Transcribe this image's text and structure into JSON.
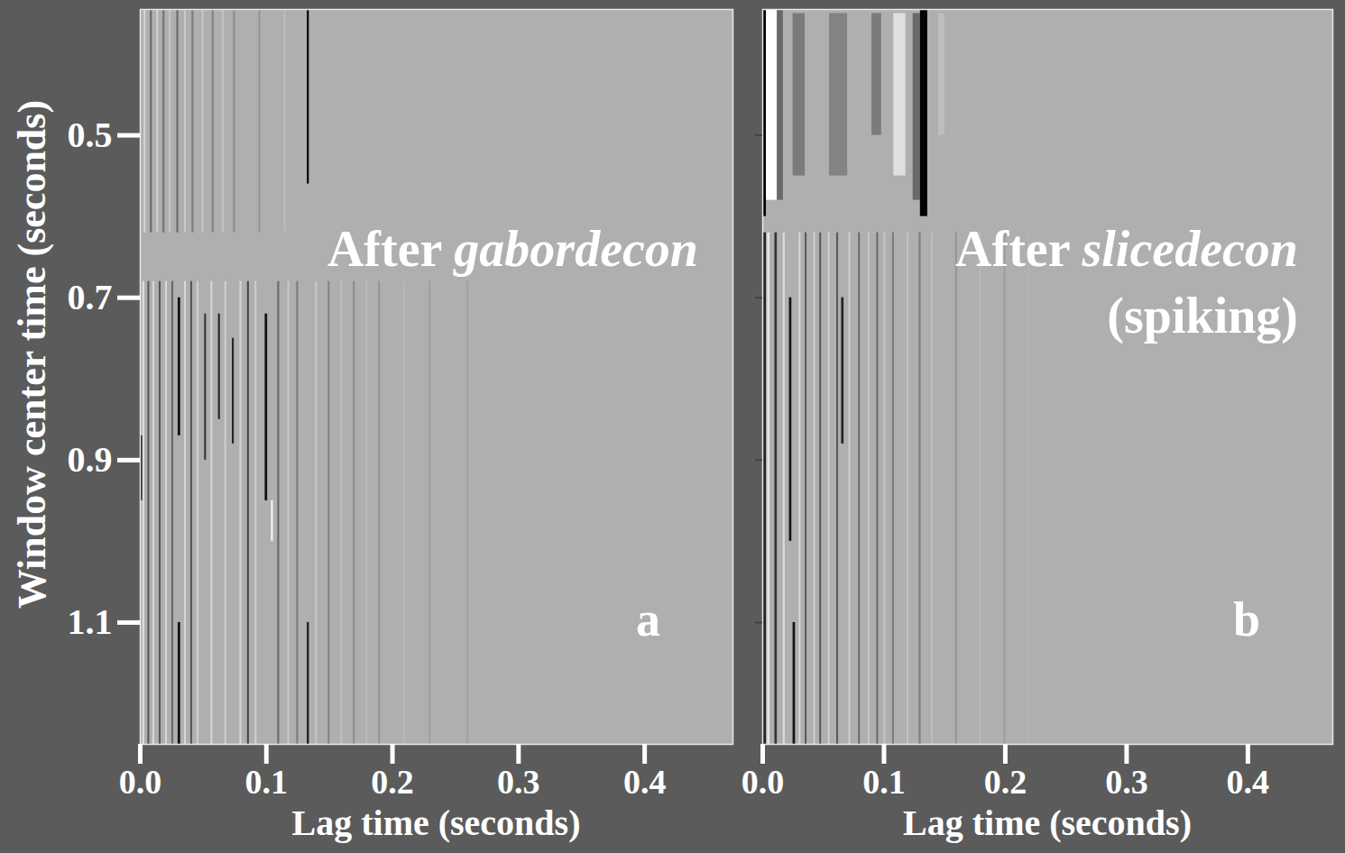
{
  "chart_data": [
    {
      "type": "heatmap",
      "title": "After gabordecon",
      "annotations": [
        "a"
      ],
      "xlabel": "Lag time (seconds)",
      "ylabel": "Window center time (seconds)",
      "xlim": [
        0,
        0.47
      ],
      "xticks": [
        {
          "value": 0,
          "label": "0.0"
        },
        0.1,
        0.2,
        0.3,
        0.4
      ],
      "ylim": [
        0.345,
        1.25
      ],
      "yticks": [
        0.5,
        0.7,
        0.9,
        1.1
      ],
      "zlim": [
        -1,
        1
      ],
      "cells": [
        {
          "x1": 0.003,
          "x2": 0.0045,
          "y1": 0.345,
          "y2": 0.62,
          "value": -0.5
        },
        {
          "x1": 0.008,
          "x2": 0.0095,
          "y1": 0.345,
          "y2": 0.62,
          "value": 0.4
        },
        {
          "x1": 0.013,
          "x2": 0.0145,
          "y1": 0.345,
          "y2": 0.62,
          "value": -0.4
        },
        {
          "x1": 0.018,
          "x2": 0.0195,
          "y1": 0.345,
          "y2": 0.62,
          "value": 0.35
        },
        {
          "x1": 0.023,
          "x2": 0.0245,
          "y1": 0.345,
          "y2": 0.62,
          "value": -0.3
        },
        {
          "x1": 0.029,
          "x2": 0.0305,
          "y1": 0.345,
          "y2": 0.62,
          "value": 0.4
        },
        {
          "x1": 0.035,
          "x2": 0.0365,
          "y1": 0.345,
          "y2": 0.62,
          "value": -0.3
        },
        {
          "x1": 0.041,
          "x2": 0.0425,
          "y1": 0.345,
          "y2": 0.62,
          "value": 0.3
        },
        {
          "x1": 0.049,
          "x2": 0.0505,
          "y1": 0.345,
          "y2": 0.62,
          "value": -0.3
        },
        {
          "x1": 0.057,
          "x2": 0.0585,
          "y1": 0.345,
          "y2": 0.62,
          "value": 0.25
        },
        {
          "x1": 0.065,
          "x2": 0.0665,
          "y1": 0.345,
          "y2": 0.62,
          "value": -0.25
        },
        {
          "x1": 0.074,
          "x2": 0.0755,
          "y1": 0.345,
          "y2": 0.62,
          "value": 0.2
        },
        {
          "x1": 0.094,
          "x2": 0.0955,
          "y1": 0.345,
          "y2": 0.62,
          "value": 0.15
        },
        {
          "x1": 0.114,
          "x2": 0.1155,
          "y1": 0.345,
          "y2": 0.62,
          "value": -0.15
        },
        {
          "x1": 0.1325,
          "x2": 0.134,
          "y1": 0.345,
          "y2": 0.56,
          "value": 1
        },
        {
          "x1": 0,
          "x2": 0.002,
          "y1": 0.87,
          "y2": 0.95,
          "value": 0.9
        },
        {
          "x1": 0.002,
          "x2": 0.0035,
          "y1": 0.68,
          "y2": 1.25,
          "value": -0.6
        },
        {
          "x1": 0.006,
          "x2": 0.0075,
          "y1": 0.68,
          "y2": 1.25,
          "value": 0.5
        },
        {
          "x1": 0.01,
          "x2": 0.0115,
          "y1": 0.68,
          "y2": 1.25,
          "value": -0.5
        },
        {
          "x1": 0.015,
          "x2": 0.0165,
          "y1": 0.68,
          "y2": 1.25,
          "value": 0.5
        },
        {
          "x1": 0.02,
          "x2": 0.0215,
          "y1": 0.68,
          "y2": 1.25,
          "value": -0.5
        },
        {
          "x1": 0.025,
          "x2": 0.0265,
          "y1": 0.68,
          "y2": 1.25,
          "value": 0.4
        },
        {
          "x1": 0.03,
          "x2": 0.032,
          "y1": 0.7,
          "y2": 0.87,
          "value": 0.9
        },
        {
          "x1": 0.03,
          "x2": 0.032,
          "y1": 1.1,
          "y2": 1.25,
          "value": 0.9
        },
        {
          "x1": 0.035,
          "x2": 0.0365,
          "y1": 0.68,
          "y2": 1.25,
          "value": -0.5
        },
        {
          "x1": 0.04,
          "x2": 0.0415,
          "y1": 0.68,
          "y2": 1.25,
          "value": 0.5
        },
        {
          "x1": 0.045,
          "x2": 0.0465,
          "y1": 0.68,
          "y2": 1.25,
          "value": -0.4
        },
        {
          "x1": 0.051,
          "x2": 0.0525,
          "y1": 0.72,
          "y2": 0.9,
          "value": 0.7
        },
        {
          "x1": 0.056,
          "x2": 0.0575,
          "y1": 0.68,
          "y2": 1.25,
          "value": -0.5
        },
        {
          "x1": 0.062,
          "x2": 0.0635,
          "y1": 0.72,
          "y2": 0.85,
          "value": 0.8
        },
        {
          "x1": 0.067,
          "x2": 0.0685,
          "y1": 0.68,
          "y2": 1.25,
          "value": -0.4
        },
        {
          "x1": 0.073,
          "x2": 0.0745,
          "y1": 0.75,
          "y2": 0.88,
          "value": 0.8
        },
        {
          "x1": 0.079,
          "x2": 0.0805,
          "y1": 0.68,
          "y2": 1.25,
          "value": -0.5
        },
        {
          "x1": 0.085,
          "x2": 0.0865,
          "y1": 0.68,
          "y2": 1.25,
          "value": 0.6
        },
        {
          "x1": 0.091,
          "x2": 0.0925,
          "y1": 0.68,
          "y2": 1.25,
          "value": -0.4
        },
        {
          "x1": 0.099,
          "x2": 0.101,
          "y1": 0.72,
          "y2": 0.95,
          "value": 0.9
        },
        {
          "x1": 0.104,
          "x2": 0.1055,
          "y1": 0.95,
          "y2": 1.0,
          "value": -0.9
        },
        {
          "x1": 0.109,
          "x2": 0.1105,
          "y1": 0.68,
          "y2": 1.25,
          "value": 0.4
        },
        {
          "x1": 0.117,
          "x2": 0.1185,
          "y1": 0.68,
          "y2": 1.25,
          "value": -0.3
        },
        {
          "x1": 0.124,
          "x2": 0.1255,
          "y1": 0.68,
          "y2": 1.25,
          "value": 0.3
        },
        {
          "x1": 0.1325,
          "x2": 0.134,
          "y1": 1.1,
          "y2": 1.25,
          "value": 0.9
        },
        {
          "x1": 0.139,
          "x2": 0.1405,
          "y1": 0.68,
          "y2": 1.25,
          "value": -0.3
        },
        {
          "x1": 0.149,
          "x2": 0.1505,
          "y1": 0.68,
          "y2": 1.25,
          "value": 0.25
        },
        {
          "x1": 0.159,
          "x2": 0.1605,
          "y1": 0.68,
          "y2": 1.25,
          "value": -0.2
        },
        {
          "x1": 0.169,
          "x2": 0.1705,
          "y1": 0.68,
          "y2": 1.25,
          "value": 0.2
        },
        {
          "x1": 0.179,
          "x2": 0.1805,
          "y1": 0.68,
          "y2": 1.25,
          "value": -0.15
        },
        {
          "x1": 0.189,
          "x2": 0.1905,
          "y1": 0.68,
          "y2": 1.25,
          "value": 0.15
        },
        {
          "x1": 0.209,
          "x2": 0.2105,
          "y1": 0.68,
          "y2": 1.25,
          "value": -0.1
        },
        {
          "x1": 0.229,
          "x2": 0.2305,
          "y1": 0.68,
          "y2": 1.25,
          "value": 0.1
        },
        {
          "x1": 0.259,
          "x2": 0.2605,
          "y1": 0.68,
          "y2": 1.25,
          "value": 0.08
        }
      ]
    },
    {
      "type": "heatmap",
      "title": "After slicedecon (spiking)",
      "annotations": [
        "b"
      ],
      "xlabel": "Lag time (seconds)",
      "tick_labels": "x",
      "xlim": [
        0,
        0.47
      ],
      "xticks": [
        {
          "value": 0,
          "label": "0.0"
        },
        0.1,
        0.2,
        0.3,
        0.4
      ],
      "ylim": [
        0.345,
        1.25
      ],
      "yticks": [
        0.5,
        0.7,
        0.9,
        1.1
      ],
      "zlim": [
        -1,
        1
      ],
      "cells": [
        {
          "x1": 0,
          "x2": 0.003,
          "y1": 0.345,
          "y2": 0.6,
          "value": 1
        },
        {
          "x1": 0.003,
          "x2": 0.012,
          "y1": 0.345,
          "y2": 0.58,
          "value": -1
        },
        {
          "x1": 0.012,
          "x2": 0.017,
          "y1": 0.345,
          "y2": 0.58,
          "value": 0.4
        },
        {
          "x1": 0.025,
          "x2": 0.035,
          "y1": 0.35,
          "y2": 0.55,
          "value": 0.3
        },
        {
          "x1": 0.055,
          "x2": 0.07,
          "y1": 0.35,
          "y2": 0.55,
          "value": 0.25
        },
        {
          "x1": 0.09,
          "x2": 0.098,
          "y1": 0.35,
          "y2": 0.5,
          "value": 0.3
        },
        {
          "x1": 0.108,
          "x2": 0.118,
          "y1": 0.35,
          "y2": 0.55,
          "value": -0.6
        },
        {
          "x1": 0.124,
          "x2": 0.13,
          "y1": 0.35,
          "y2": 0.58,
          "value": 0.4
        },
        {
          "x1": 0.13,
          "x2": 0.136,
          "y1": 0.345,
          "y2": 0.6,
          "value": 1
        },
        {
          "x1": 0.145,
          "x2": 0.15,
          "y1": 0.35,
          "y2": 0.5,
          "value": -0.2
        },
        {
          "x1": 0,
          "x2": 0.003,
          "y1": 0.62,
          "y2": 1.25,
          "value": 0.8
        },
        {
          "x1": 0.004,
          "x2": 0.006,
          "y1": 0.62,
          "y2": 1.25,
          "value": -0.7
        },
        {
          "x1": 0.01,
          "x2": 0.012,
          "y1": 0.62,
          "y2": 1.25,
          "value": 0.7
        },
        {
          "x1": 0.017,
          "x2": 0.0185,
          "y1": 0.62,
          "y2": 1.25,
          "value": -0.6
        },
        {
          "x1": 0.022,
          "x2": 0.024,
          "y1": 0.7,
          "y2": 1.0,
          "value": 0.9
        },
        {
          "x1": 0.025,
          "x2": 0.027,
          "y1": 1.1,
          "y2": 1.25,
          "value": 0.9
        },
        {
          "x1": 0.03,
          "x2": 0.0315,
          "y1": 0.62,
          "y2": 1.25,
          "value": -0.5
        },
        {
          "x1": 0.035,
          "x2": 0.0365,
          "y1": 0.62,
          "y2": 1.25,
          "value": 0.5
        },
        {
          "x1": 0.042,
          "x2": 0.0435,
          "y1": 0.62,
          "y2": 1.25,
          "value": -0.4
        },
        {
          "x1": 0.047,
          "x2": 0.0485,
          "y1": 0.62,
          "y2": 1.25,
          "value": 0.5
        },
        {
          "x1": 0.054,
          "x2": 0.0555,
          "y1": 0.62,
          "y2": 1.25,
          "value": -0.4
        },
        {
          "x1": 0.061,
          "x2": 0.0625,
          "y1": 0.62,
          "y2": 1.25,
          "value": 0.5
        },
        {
          "x1": 0.065,
          "x2": 0.067,
          "y1": 0.7,
          "y2": 0.88,
          "value": 0.8
        },
        {
          "x1": 0.071,
          "x2": 0.0725,
          "y1": 0.62,
          "y2": 1.25,
          "value": -0.4
        },
        {
          "x1": 0.079,
          "x2": 0.0805,
          "y1": 0.62,
          "y2": 1.25,
          "value": 0.4
        },
        {
          "x1": 0.087,
          "x2": 0.0885,
          "y1": 0.62,
          "y2": 1.25,
          "value": -0.3
        },
        {
          "x1": 0.094,
          "x2": 0.0955,
          "y1": 0.62,
          "y2": 1.25,
          "value": 0.4
        },
        {
          "x1": 0.1,
          "x2": 0.1015,
          "y1": 0.62,
          "y2": 1.25,
          "value": -0.3
        },
        {
          "x1": 0.107,
          "x2": 0.1085,
          "y1": 0.62,
          "y2": 1.25,
          "value": 0.3
        },
        {
          "x1": 0.119,
          "x2": 0.1205,
          "y1": 0.62,
          "y2": 1.25,
          "value": -0.25
        },
        {
          "x1": 0.129,
          "x2": 0.1305,
          "y1": 0.62,
          "y2": 1.25,
          "value": 0.3
        },
        {
          "x1": 0.139,
          "x2": 0.1405,
          "y1": 0.62,
          "y2": 1.25,
          "value": -0.2
        },
        {
          "x1": 0.159,
          "x2": 0.1605,
          "y1": 0.62,
          "y2": 1.25,
          "value": 0.15
        },
        {
          "x1": 0.179,
          "x2": 0.1805,
          "y1": 0.62,
          "y2": 1.25,
          "value": -0.12
        },
        {
          "x1": 0.199,
          "x2": 0.2005,
          "y1": 0.62,
          "y2": 1.25,
          "value": 0.1
        },
        {
          "x1": 0.219,
          "x2": 0.2205,
          "y1": 0.62,
          "y2": 1.25,
          "value": -0.08
        }
      ]
    }
  ]
}
